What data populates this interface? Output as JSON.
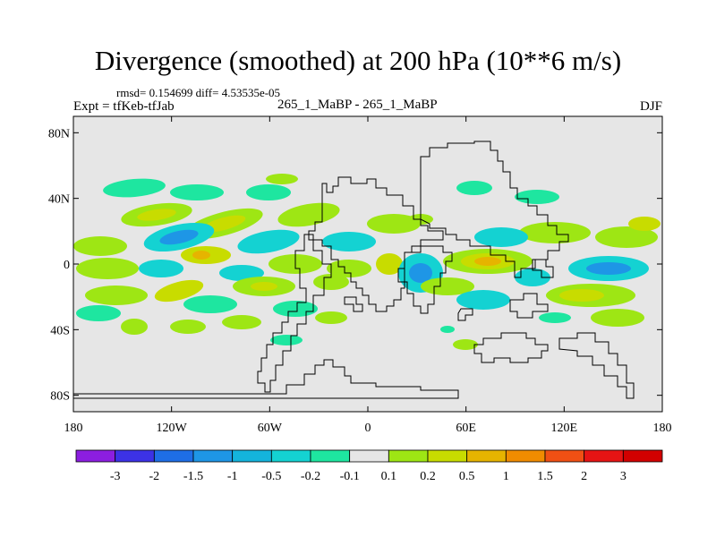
{
  "title": "Divergence (smoothed) at 200 hPa (10**6 m/s)",
  "stats_line": "rmsd= 0.154699 diff= 4.53535e-05",
  "experiment_line": "Expt = tfKeb-tfJab",
  "case_label": "265_1_MaBP - 265_1_MaBP",
  "season": "DJF",
  "map": {
    "projection": "cylindrical equidistant",
    "lon_range": [
      -180,
      180
    ],
    "lat_range": [
      -90,
      90
    ],
    "lon_ticks": [
      {
        "value": -180,
        "label": "180"
      },
      {
        "value": -120,
        "label": "120W"
      },
      {
        "value": -60,
        "label": "60W"
      },
      {
        "value": 0,
        "label": "0"
      },
      {
        "value": 60,
        "label": "60E"
      },
      {
        "value": 120,
        "label": "120E"
      },
      {
        "value": 180,
        "label": "180"
      }
    ],
    "lat_ticks": [
      {
        "value": 80,
        "label": "80N"
      },
      {
        "value": 40,
        "label": "40N"
      },
      {
        "value": 0,
        "label": "0"
      },
      {
        "value": -40,
        "label": "40S"
      },
      {
        "value": -80,
        "label": "80S"
      }
    ],
    "background_color": "#e6e6e6",
    "continent_outline_color": "#000000"
  },
  "colorbar": {
    "labels": [
      "-3",
      "-2",
      "-1.5",
      "-1",
      "-0.5",
      "-0.2",
      "-0.1",
      "0.1",
      "0.2",
      "0.5",
      "1",
      "1.5",
      "2",
      "3"
    ],
    "colors": [
      "#8c1ee0",
      "#3c32e6",
      "#1e6ee6",
      "#1e96e6",
      "#14b4dc",
      "#14d2d2",
      "#1ee6a0",
      "#e6e6e6",
      "#9ee614",
      "#c8dc00",
      "#e6b400",
      "#f08c00",
      "#f05014",
      "#e61414",
      "#d20000"
    ]
  }
}
